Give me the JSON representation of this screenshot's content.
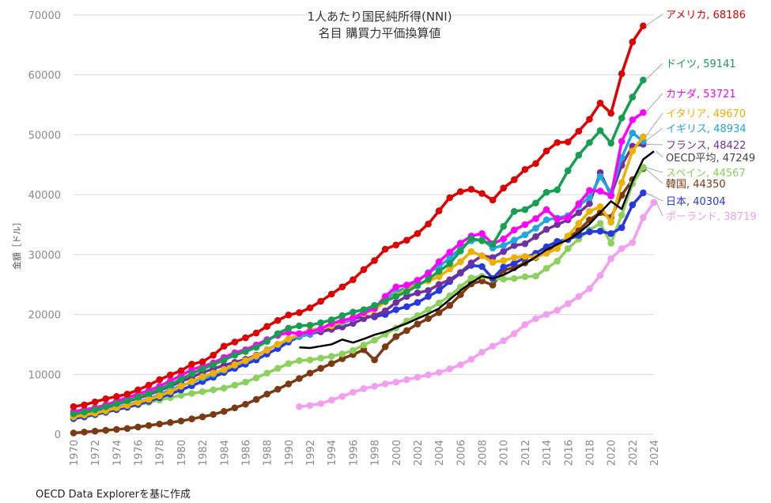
{
  "source_note": "OECD Data Explorerを基に作成",
  "chart_data": {
    "type": "line",
    "title": "1人あたり国民純所得(NNI)",
    "subtitle": "名目 購買力平価換算値",
    "ylabel": "金額［ドル］",
    "xlabel": "",
    "ylim": [
      0,
      70000
    ],
    "xlim": [
      1970,
      2024
    ],
    "yticks": [
      0,
      10000,
      20000,
      30000,
      40000,
      50000,
      60000,
      70000
    ],
    "xticks": [
      1970,
      1972,
      1974,
      1976,
      1978,
      1980,
      1982,
      1984,
      1986,
      1988,
      1990,
      1992,
      1994,
      1996,
      1998,
      2000,
      2002,
      2004,
      2006,
      2008,
      2010,
      2012,
      2014,
      2016,
      2018,
      2020,
      2022,
      2024
    ],
    "grid": true,
    "series": [
      {
        "name": "ポーランド",
        "label": "ポーランド, 38719",
        "color": "#f59ef0",
        "start": 1991,
        "values": [
          4600,
          4800,
          5100,
          5700,
          6300,
          7000,
          7600,
          8000,
          8400,
          8700,
          9100,
          9500,
          9900,
          10300,
          10900,
          11600,
          12500,
          13700,
          14700,
          15600,
          16800,
          18300,
          19300,
          20000,
          20700,
          21800,
          23000,
          24300,
          26500,
          29300,
          31000,
          32000,
          36200,
          38719
        ]
      },
      {
        "name": "韓国",
        "label": "韓国, 44350",
        "color": "#7b3a12",
        "start": 1970,
        "values": [
          200,
          350,
          500,
          650,
          800,
          950,
          1200,
          1450,
          1700,
          1950,
          2200,
          2550,
          2900,
          3300,
          3800,
          4400,
          5000,
          5800,
          6700,
          7500,
          8400,
          9300,
          10200,
          11000,
          11800,
          12600,
          13300,
          14100,
          12400,
          14600,
          16300,
          17300,
          18400,
          19300,
          20300,
          21500,
          23300,
          25100,
          25600,
          24900,
          27400,
          27800,
          28600,
          29500,
          30500,
          31800,
          32800,
          34000,
          35800,
          37000,
          36200,
          39900,
          42500,
          44350
        ]
      },
      {
        "name": "スペイン",
        "label": "スペイン, 44567",
        "color": "#8bd15b",
        "start": 1970,
        "values": [
          2600,
          2900,
          3200,
          3600,
          4100,
          4500,
          4900,
          5300,
          5700,
          6100,
          6500,
          6800,
          7100,
          7400,
          7700,
          8200,
          8700,
          9400,
          10200,
          11000,
          11800,
          12300,
          12400,
          12700,
          13000,
          13400,
          14000,
          14900,
          15700,
          16700,
          17700,
          18900,
          19800,
          20800,
          21900,
          23100,
          24600,
          26100,
          26400,
          25900,
          25900,
          26000,
          26300,
          26400,
          27700,
          28900,
          31000,
          32600,
          34100,
          35200,
          31900,
          36600,
          41800,
          44567
        ]
      },
      {
        "name": "日本",
        "label": "日本, 40304",
        "color": "#2638e0",
        "start": 1970,
        "values": [
          2600,
          2900,
          3300,
          3700,
          4100,
          4500,
          5000,
          5500,
          6100,
          6700,
          7400,
          8100,
          8800,
          9500,
          10300,
          11000,
          11700,
          12400,
          13400,
          14300,
          15400,
          16300,
          16700,
          17300,
          17800,
          18500,
          19300,
          19700,
          19600,
          20000,
          20800,
          21300,
          22000,
          23000,
          24000,
          25500,
          26900,
          28200,
          28000,
          26000,
          27900,
          28500,
          29500,
          30200,
          31300,
          32200,
          32500,
          33200,
          33800,
          33900,
          33500,
          34500,
          38300,
          40304
        ]
      },
      {
        "name": "フランス",
        "label": "フランス, 48422",
        "color": "#7030a0",
        "start": 1970,
        "values": [
          3300,
          3600,
          4000,
          4500,
          5000,
          5500,
          6000,
          6600,
          7300,
          8000,
          8800,
          9500,
          10300,
          10900,
          11500,
          12000,
          12500,
          13200,
          14000,
          15000,
          15800,
          16400,
          16800,
          17100,
          17500,
          17900,
          18500,
          19300,
          19800,
          20600,
          22000,
          23000,
          23600,
          24000,
          25000,
          25800,
          27000,
          28600,
          29800,
          29500,
          30500,
          31500,
          31800,
          33000,
          34200,
          35000,
          35800,
          37000,
          38500,
          43700,
          39900,
          44900,
          48100,
          48422
        ]
      },
      {
        "name": "イギリス",
        "label": "イギリス, 48934",
        "color": "#20a7e0",
        "start": 1970,
        "values": [
          2900,
          3200,
          3600,
          4000,
          4500,
          4900,
          5400,
          5900,
          6600,
          7400,
          8100,
          8700,
          9400,
          10000,
          10700,
          11500,
          12200,
          13000,
          14100,
          15000,
          15800,
          16300,
          16800,
          17500,
          18100,
          18600,
          19300,
          20500,
          21200,
          22500,
          23800,
          24500,
          25500,
          27000,
          28000,
          29400,
          31100,
          32300,
          32500,
          31100,
          31500,
          32400,
          33300,
          34400,
          35800,
          36100,
          36500,
          38200,
          39500,
          43000,
          40400,
          46200,
          50300,
          48934
        ]
      },
      {
        "name": "イタリア",
        "label": "イタリア, 49670",
        "color": "#f0b000",
        "start": 1970,
        "values": [
          2900,
          3200,
          3500,
          3900,
          4400,
          4800,
          5300,
          5800,
          6400,
          7100,
          8000,
          8800,
          9600,
          10200,
          10800,
          11600,
          12300,
          13100,
          14000,
          15000,
          15900,
          16700,
          17400,
          17600,
          18100,
          18800,
          19500,
          20100,
          20800,
          22100,
          23200,
          24200,
          25000,
          25600,
          26300,
          27600,
          28800,
          30500,
          29800,
          28700,
          29000,
          29500,
          29700,
          29600,
          30200,
          31000,
          33100,
          35200,
          37200,
          38000,
          35400,
          42000,
          47300,
          49670
        ]
      },
      {
        "name": "カナダ",
        "label": "カナダ, 53721",
        "color": "#ff00ff",
        "start": 1970,
        "values": [
          3800,
          4100,
          4400,
          4900,
          5500,
          6100,
          6700,
          7300,
          8000,
          8900,
          9800,
          10800,
          11300,
          11900,
          12800,
          13600,
          14100,
          14900,
          15800,
          16500,
          17000,
          16800,
          17100,
          17600,
          18500,
          19000,
          19400,
          20300,
          21000,
          23000,
          24600,
          24900,
          25700,
          26800,
          28800,
          30400,
          31900,
          33100,
          33500,
          31800,
          32600,
          34100,
          35000,
          36000,
          37500,
          35900,
          36200,
          38500,
          40700,
          40600,
          39800,
          48900,
          52500,
          53721
        ]
      },
      {
        "name": "ドイツ",
        "label": "ドイツ, 59141",
        "color": "#14a050",
        "start": 1970,
        "values": [
          3400,
          3700,
          4100,
          4600,
          5100,
          5600,
          6200,
          6800,
          7500,
          8300,
          9200,
          10100,
          10900,
          11600,
          12400,
          13200,
          13800,
          14500,
          15500,
          16800,
          17700,
          18100,
          18200,
          18600,
          19100,
          19800,
          20400,
          20800,
          21500,
          22200,
          23000,
          23800,
          24800,
          25900,
          27200,
          28500,
          30600,
          32700,
          32300,
          31700,
          34700,
          37200,
          37500,
          38600,
          40400,
          40800,
          44000,
          46600,
          48700,
          50700,
          48600,
          52800,
          56300,
          59141
        ]
      },
      {
        "name": "アメリカ",
        "label": "アメリカ, 68186",
        "color": "#e00000",
        "start": 1970,
        "values": [
          4600,
          4900,
          5400,
          5900,
          6300,
          6700,
          7400,
          8200,
          9100,
          9900,
          10600,
          11700,
          12100,
          13200,
          14700,
          15400,
          16100,
          16900,
          18000,
          19000,
          19900,
          20300,
          21100,
          22200,
          23400,
          24600,
          25800,
          27500,
          29000,
          30900,
          31600,
          32400,
          33500,
          35100,
          37300,
          39500,
          40500,
          40900,
          40200,
          39100,
          41100,
          42500,
          44200,
          45200,
          47300,
          48700,
          48800,
          50600,
          52600,
          55300,
          53600,
          60200,
          65500,
          68186
        ]
      },
      {
        "name": "OECD平均",
        "label": "OECD平均, 47249",
        "color": "#000000",
        "start": 1991,
        "values": [
          14500,
          14400,
          14700,
          15000,
          15800,
          15300,
          15900,
          16600,
          17100,
          17800,
          18500,
          19300,
          20100,
          21000,
          22500,
          24000,
          25300,
          26400,
          26000,
          26600,
          27500,
          28500,
          29600,
          30800,
          31700,
          32500,
          33600,
          35100,
          37000,
          38900,
          37600,
          42200,
          45900,
          47249
        ]
      }
    ]
  }
}
